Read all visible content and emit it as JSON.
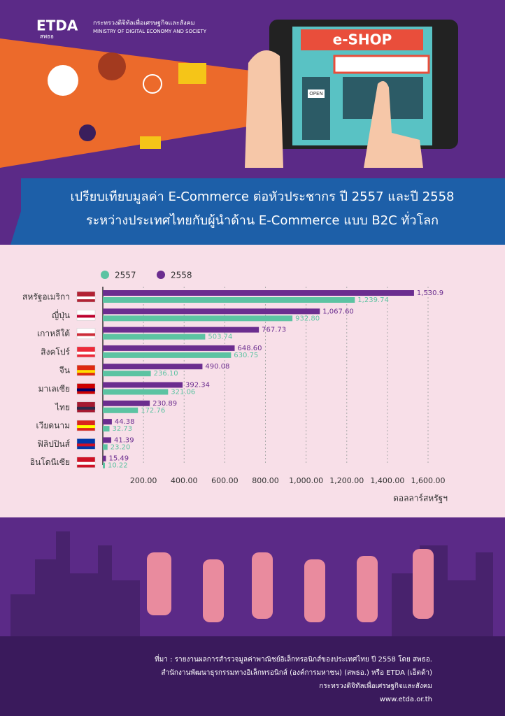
{
  "header": {
    "logo": "ETDA",
    "logo_sub": "สพธอ",
    "ministry_th": "กระทรวงดิจิทัลเพื่อเศรษฐกิจและสังคม",
    "ministry_en": "MINISTRY OF DIGITAL ECONOMY AND SOCIETY",
    "shop_sign": "e-SHOP",
    "open_sign": "OPEN"
  },
  "chart_data": {
    "type": "bar",
    "orientation": "horizontal",
    "title": [
      "เปรียบเทียบมูลค่า E-Commerce ต่อหัวประชากร ปี 2557 และปี 2558",
      "ระหว่างประเทศไทยกับผู้นำด้าน E-Commerce แบบ B2C ทั่วโลก"
    ],
    "categories": [
      "สหรัฐอเมริกา",
      "ญี่ปุ่น",
      "เกาหลีใต้",
      "สิงคโปร์",
      "จีน",
      "มาเลเซีย",
      "ไทย",
      "เวียดนาม",
      "ฟิลิปปินส์",
      "อินโดนีเซีย"
    ],
    "series": [
      {
        "name": "2557",
        "color": "#5cc3a2",
        "values": [
          1239.74,
          932.8,
          503.74,
          630.75,
          236.1,
          321.06,
          172.76,
          32.73,
          23.2,
          10.22
        ],
        "value_labels": [
          "1,239.74",
          "932.80",
          "503.74",
          "630.75",
          "236.10",
          "321.06",
          "172.76",
          "32.73",
          "23.20",
          "10.22"
        ]
      },
      {
        "name": "2558",
        "color": "#6b2d8f",
        "values": [
          1530.9,
          1067.6,
          767.73,
          648.6,
          490.08,
          392.34,
          230.89,
          44.38,
          41.39,
          15.49
        ],
        "value_labels": [
          "1,530.9",
          "1,067.60",
          "767.73",
          "648.60",
          "490.08",
          "392.34",
          "230.89",
          "44.38",
          "41.39",
          "15.49"
        ]
      }
    ],
    "xlim": [
      0,
      1600
    ],
    "xticks": [
      {
        "value": 200,
        "label": "200.00"
      },
      {
        "value": 400,
        "label": "400.00"
      },
      {
        "value": 600,
        "label": "600.00"
      },
      {
        "value": 800,
        "label": "800.00"
      },
      {
        "value": 1000,
        "label": "1,000.00"
      },
      {
        "value": 1200,
        "label": "1,200.00"
      },
      {
        "value": 1400,
        "label": "1,400.00"
      },
      {
        "value": 1600,
        "label": "1,600.00"
      }
    ],
    "x_label": "ดอลลาร์สหรัฐฯ",
    "grid": true
  },
  "footer": {
    "lines": [
      "ที่มา : รายงานผลการสำรวจมูลค่าพาณิชย์อิเล็กทรอนิกส์ของประเทศไทย ปี 2558 โดย สพธอ.",
      "สำนักงานพัฒนาธุรกรรมทางอิเล็กทรอนิกส์ (องค์การมหาชน) (สพธอ.) หรือ ETDA (เอ็ตด้า)",
      "กระทรวงดิจิทัลเพื่อเศรษฐกิจและสังคม",
      "www.etda.or.th"
    ]
  }
}
